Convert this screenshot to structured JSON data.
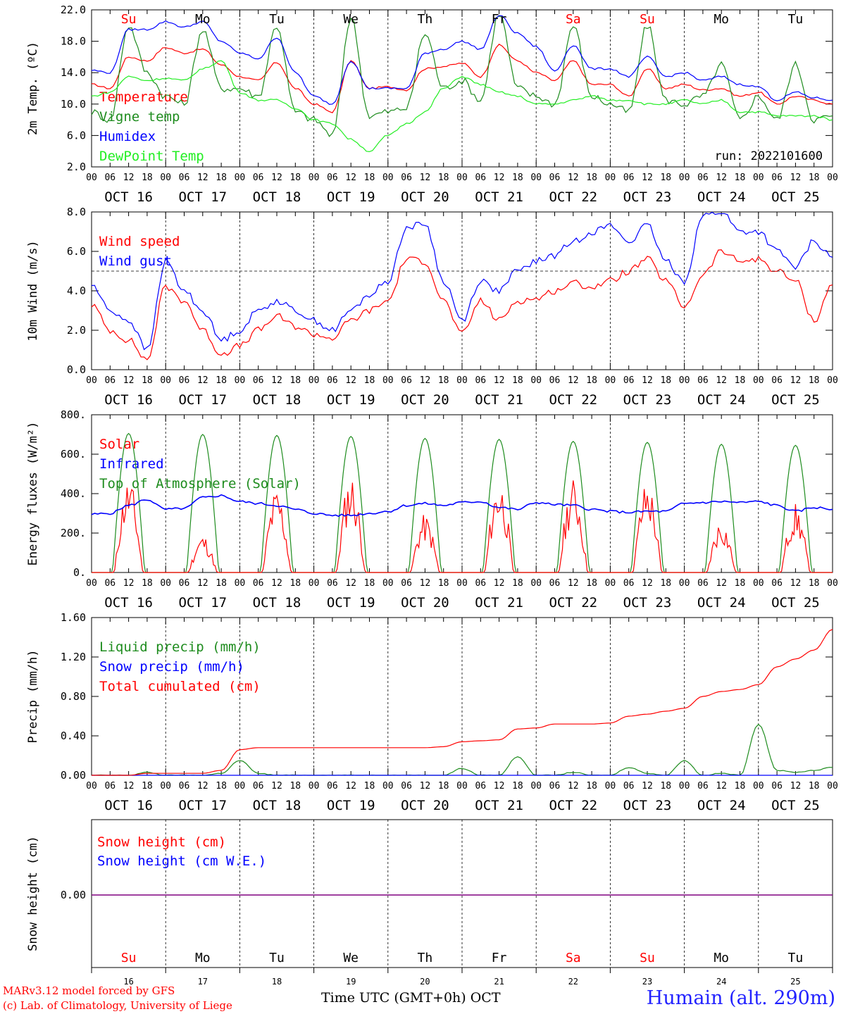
{
  "run_label": "run: 2022101600",
  "footer": {
    "credit_line1": "MARv3.12 model forced by GFS",
    "credit_line2": "(c) Lab. of Climatology, University of Liege",
    "x_title": "Time UTC (GMT+0h) OCT",
    "station": "Humain (alt. 290m)"
  },
  "time_axis": {
    "days": [
      "OCT 16",
      "OCT 17",
      "OCT 18",
      "OCT 19",
      "OCT 20",
      "OCT 21",
      "OCT 22",
      "OCT 23",
      "OCT 24",
      "OCT 25"
    ],
    "hour_ticks": [
      "00",
      "06",
      "12",
      "18"
    ],
    "end_tick": "00",
    "weekdays": [
      "Su",
      "Mo",
      "Tu",
      "We",
      "Th",
      "Fr",
      "Sa",
      "Su",
      "Mo",
      "Tu"
    ],
    "weekday_colors": [
      "#ff0000",
      "#000000",
      "#000000",
      "#000000",
      "#000000",
      "#000000",
      "#ff0000",
      "#ff0000",
      "#000000",
      "#000000"
    ],
    "day_numbers": [
      "16",
      "17",
      "18",
      "19",
      "20",
      "21",
      "22",
      "23",
      "24",
      "25"
    ]
  },
  "chart_data": [
    {
      "type": "line",
      "ylabel": "2m Temp. (ºC)",
      "ylim": [
        2,
        22
      ],
      "yticks": [
        "2.0",
        "6.0",
        "10.0",
        "14.0",
        "18.0",
        "22.0"
      ],
      "ytick_values": [
        2,
        6,
        10,
        14,
        18,
        22
      ],
      "x_hours": [
        0,
        6,
        12,
        18,
        24,
        30,
        36,
        42,
        48,
        54,
        60,
        66,
        72,
        78,
        84,
        90,
        96,
        102,
        108,
        114,
        120,
        126,
        132,
        138,
        144,
        150,
        156,
        162,
        168,
        174,
        180,
        186,
        192,
        198,
        204,
        210,
        216,
        222,
        228,
        234,
        240
      ],
      "series": [
        {
          "name": "Temperature",
          "color": "#ff0000",
          "values": [
            12.5,
            12,
            16,
            15.5,
            17.2,
            16.5,
            17,
            15,
            13.5,
            13,
            15.3,
            12,
            10,
            9,
            15.5,
            12,
            12.2,
            11.8,
            14.5,
            14.8,
            15.2,
            13.5,
            17.5,
            15.5,
            14,
            13,
            15.5,
            12.5,
            12.5,
            11,
            14.5,
            12,
            12.5,
            11.8,
            12,
            11,
            11.5,
            10,
            11,
            10.5,
            10
          ]
        },
        {
          "name": "Vigne temp",
          "color": "#1e8c1e",
          "values": [
            9,
            8,
            20,
            14,
            11,
            10,
            19.5,
            12,
            12,
            11,
            20,
            9,
            8,
            6,
            21,
            8.5,
            9,
            9.5,
            19,
            12,
            13,
            10.5,
            21.5,
            12,
            11,
            10,
            20,
            11,
            10,
            9,
            20,
            10.5,
            10,
            11,
            15,
            8,
            11,
            8,
            15,
            8,
            8.5
          ]
        },
        {
          "name": "Humidex",
          "color": "#0000ff",
          "values": [
            14.3,
            14,
            19.5,
            19.5,
            20.5,
            19.8,
            20.5,
            18,
            16.5,
            15.8,
            18.5,
            14,
            11,
            10,
            15.5,
            12,
            12,
            12,
            16.5,
            17,
            18,
            17,
            21.3,
            19,
            17.3,
            14.2,
            17.5,
            14.5,
            14.5,
            13.5,
            16,
            13.5,
            14,
            13,
            13.5,
            12.5,
            12.2,
            10.5,
            11.5,
            10.8,
            10.5
          ]
        },
        {
          "name": "DewPoint Temp",
          "color": "#22ee22",
          "values": [
            11,
            11.5,
            13.5,
            13,
            13.3,
            13,
            14.5,
            15.5,
            11.5,
            10.5,
            10.5,
            9.5,
            8,
            7.5,
            5.5,
            4,
            6,
            7.5,
            9,
            12,
            13.5,
            12.5,
            11.5,
            11,
            10,
            10,
            10.5,
            11,
            10.5,
            10.5,
            10,
            10,
            10.5,
            10,
            10.5,
            9,
            9,
            8.5,
            8.5,
            8.5,
            8
          ]
        }
      ]
    },
    {
      "type": "line",
      "ylabel": "10m Wind (m/s)",
      "ylim": [
        0,
        8
      ],
      "yticks": [
        "0.0",
        "2.0",
        "4.0",
        "6.0",
        "8.0"
      ],
      "ytick_values": [
        0,
        2,
        4,
        6,
        8
      ],
      "reference_line": 5,
      "x_hours": [
        0,
        6,
        12,
        18,
        24,
        30,
        36,
        42,
        48,
        54,
        60,
        66,
        72,
        78,
        84,
        90,
        96,
        102,
        108,
        114,
        120,
        126,
        132,
        138,
        144,
        150,
        156,
        162,
        168,
        174,
        180,
        186,
        192,
        198,
        204,
        210,
        216,
        222,
        228,
        234,
        240
      ],
      "series": [
        {
          "name": "Wind speed",
          "color": "#ff0000",
          "values": [
            3.3,
            2,
            1.5,
            0.5,
            4.2,
            3.5,
            2,
            0.8,
            1.2,
            2,
            2.7,
            2.2,
            1.8,
            1.6,
            2.5,
            3,
            3.5,
            5.6,
            5.5,
            3.5,
            1.8,
            3.5,
            2.5,
            3.5,
            3.6,
            4,
            4.4,
            4.2,
            4.5,
            5,
            5.6,
            4.5,
            3.2,
            4.8,
            6,
            5.5,
            5.6,
            5,
            4.5,
            2.5,
            4.3
          ]
        },
        {
          "name": "Wind gust",
          "color": "#0000ff",
          "values": [
            4.3,
            3,
            2.5,
            1,
            5.5,
            4,
            3,
            1.5,
            2,
            3,
            3.5,
            3,
            2.5,
            2,
            3,
            3.8,
            4.5,
            7.2,
            7.4,
            4.5,
            2.5,
            4.5,
            4,
            5,
            5.5,
            5.8,
            6.5,
            7,
            7.3,
            6.5,
            7.3,
            5.5,
            4.5,
            7.8,
            8,
            7,
            7,
            6,
            5.2,
            6.5,
            5.7
          ]
        }
      ]
    },
    {
      "type": "line",
      "ylabel": "Energy fluxes (W/m²)",
      "ylim": [
        0,
        800
      ],
      "yticks": [
        "0.",
        "200.",
        "400.",
        "600.",
        "800."
      ],
      "ytick_values": [
        0,
        200,
        400,
        600,
        800
      ],
      "series": [
        {
          "name": "Solar",
          "color": "#ff0000",
          "day_peaks": [
            440,
            175,
            390,
            460,
            270,
            440,
            440,
            430,
            250,
            320
          ]
        },
        {
          "name": "Infrared",
          "color": "#0000ff",
          "values": [
            295,
            300,
            340,
            370,
            320,
            325,
            380,
            390,
            360,
            350,
            340,
            320,
            300,
            290,
            290,
            300,
            310,
            340,
            350,
            340,
            355,
            360,
            330,
            320,
            355,
            345,
            340,
            320,
            310,
            305,
            310,
            310,
            350,
            355,
            360,
            355,
            360,
            340,
            310,
            330,
            320
          ]
        },
        {
          "name": "Top of Atmosphere (Solar)",
          "color": "#1e8c1e",
          "day_peaks": [
            705,
            700,
            695,
            690,
            680,
            675,
            665,
            660,
            650,
            645
          ]
        }
      ]
    },
    {
      "type": "line",
      "ylabel": "Precip (mm/h)",
      "ylim": [
        0,
        1.6
      ],
      "yticks": [
        "0.00",
        "0.40",
        "0.80",
        "1.20",
        "1.60"
      ],
      "ytick_values": [
        0,
        0.4,
        0.8,
        1.2,
        1.6
      ],
      "x_hours": [
        0,
        6,
        12,
        18,
        24,
        30,
        36,
        42,
        48,
        54,
        60,
        66,
        72,
        78,
        84,
        90,
        96,
        102,
        108,
        114,
        120,
        126,
        132,
        138,
        144,
        150,
        156,
        162,
        168,
        174,
        180,
        186,
        192,
        198,
        204,
        210,
        216,
        222,
        228,
        234,
        240
      ],
      "series": [
        {
          "name": "Liquid precip (mm/h)",
          "color": "#1e8c1e",
          "values": [
            0,
            0,
            0,
            0.03,
            0,
            0,
            0,
            0.02,
            0.15,
            0.02,
            0,
            0,
            0,
            0,
            0,
            0,
            0,
            0,
            0,
            0,
            0.07,
            0,
            0,
            0.19,
            0,
            0,
            0.03,
            0,
            0,
            0.08,
            0.02,
            0,
            0.15,
            0,
            0.02,
            0,
            0.52,
            0.05,
            0.03,
            0.05,
            0.08
          ]
        },
        {
          "name": "Snow precip (mm/h)",
          "color": "#0000ff",
          "values": [
            0,
            0,
            0,
            0,
            0,
            0,
            0,
            0,
            0,
            0,
            0,
            0,
            0,
            0,
            0,
            0,
            0,
            0,
            0,
            0,
            0,
            0,
            0,
            0,
            0,
            0,
            0,
            0,
            0,
            0,
            0,
            0,
            0,
            0,
            0,
            0,
            0,
            0,
            0,
            0,
            0
          ]
        },
        {
          "name": "Total cumulated (cm)",
          "color": "#ff0000",
          "values": [
            0,
            0,
            0,
            0.02,
            0.02,
            0.02,
            0.02,
            0.05,
            0.26,
            0.28,
            0.28,
            0.28,
            0.28,
            0.28,
            0.28,
            0.28,
            0.28,
            0.28,
            0.28,
            0.29,
            0.34,
            0.35,
            0.36,
            0.47,
            0.48,
            0.52,
            0.52,
            0.52,
            0.53,
            0.6,
            0.62,
            0.65,
            0.68,
            0.8,
            0.85,
            0.87,
            0.92,
            1.1,
            1.18,
            1.27,
            1.48
          ]
        }
      ]
    },
    {
      "type": "line",
      "ylabel": "Snow height (cm)",
      "yticks": [
        "0.00"
      ],
      "ytick_values": [
        0
      ],
      "series": [
        {
          "name": "Snow height (cm)",
          "color": "#ff0000",
          "values": [
            0,
            0
          ]
        },
        {
          "name": "Snow height (cm W.E.)",
          "color": "#0000ff",
          "values": [
            0,
            0
          ]
        }
      ]
    }
  ]
}
